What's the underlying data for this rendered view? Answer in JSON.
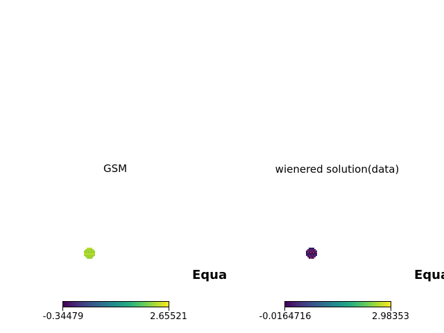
{
  "chart_data": [
    {
      "type": "heatmap",
      "title": "GSM",
      "colormap": "viridis",
      "colorbar": {
        "min": -0.34479,
        "max": 2.65521,
        "min_label": "-0.34479",
        "max_label": "2.65521"
      },
      "side_label": "Equa",
      "patch_color": "#a6d62c",
      "patch_colors": [
        "#a6d62c",
        "#b5dc35",
        "#9bd13a",
        "#8fcd3e",
        "#c2df23",
        "#a6d62c"
      ]
    },
    {
      "type": "heatmap",
      "title": "wienered solution(data)",
      "colormap": "viridis",
      "colorbar": {
        "min": -0.0164716,
        "max": 2.98353,
        "min_label": "-0.0164716",
        "max_label": "2.98353"
      },
      "side_label": "Equa",
      "patch_color": "#3b1f5c",
      "patch_colors": [
        "#2a0f4a",
        "#440154",
        "#6a1a6e",
        "#9c2c5a",
        "#1e2b6b",
        "#3b1f5c"
      ]
    }
  ]
}
